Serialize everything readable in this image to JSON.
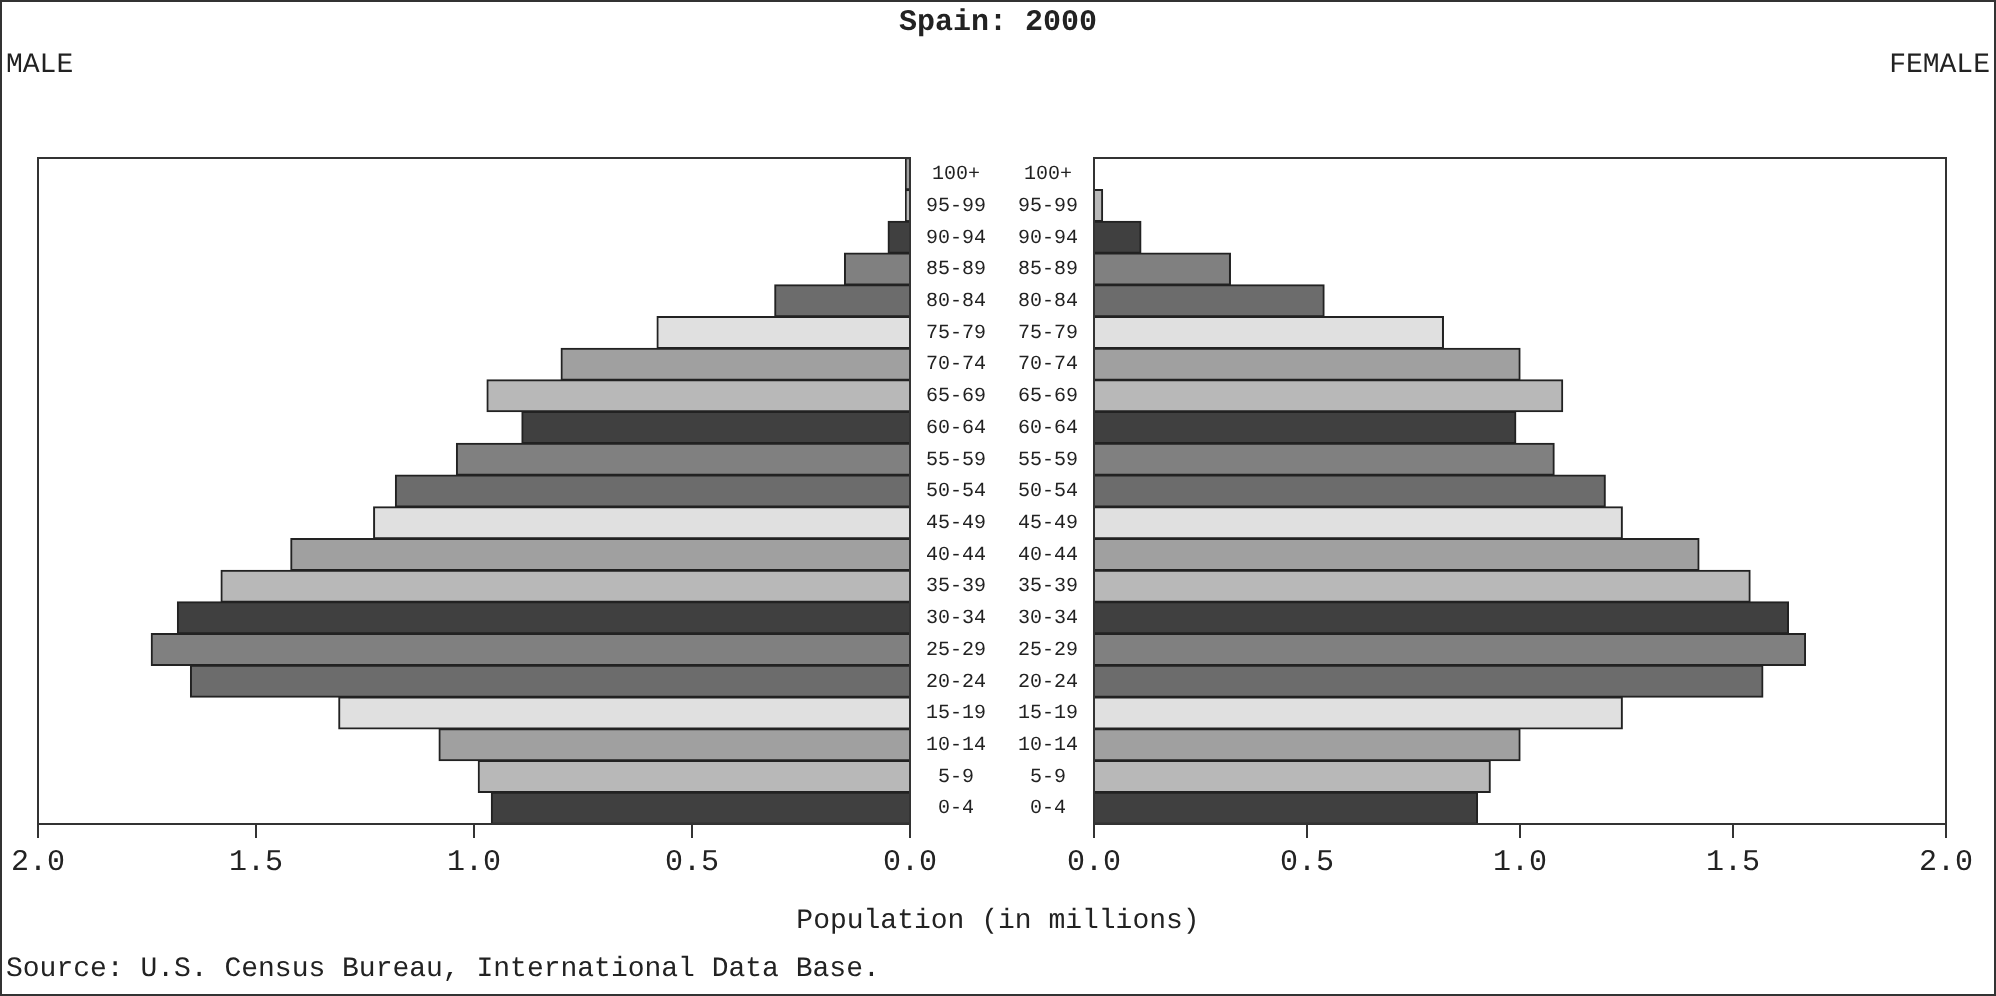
{
  "chart_data": [
    {
      "type": "bar",
      "orientation": "horizontal",
      "title": "Spain: 2000",
      "subtitle": "MALE",
      "xlabel": "Population (in millions)",
      "annotations": [
        "Source: U.S. Census Bureau, International Data Base."
      ],
      "categories": [
        "100+",
        "95-99",
        "90-94",
        "85-89",
        "80-84",
        "75-79",
        "70-74",
        "65-69",
        "60-64",
        "55-59",
        "50-54",
        "45-49",
        "40-44",
        "35-39",
        "30-34",
        "25-29",
        "20-24",
        "15-19",
        "10-14",
        "5-9",
        "0-4"
      ],
      "values": [
        0.01,
        0.01,
        0.05,
        0.15,
        0.31,
        0.58,
        0.8,
        0.97,
        0.89,
        1.04,
        1.18,
        1.23,
        1.42,
        1.58,
        1.68,
        1.74,
        1.65,
        1.31,
        1.08,
        0.99,
        0.96
      ],
      "colors": [
        "#a0a0a0",
        "#b8b8b8",
        "#404040",
        "#808080",
        "#6c6c6c",
        "#e0e0e0",
        "#a0a0a0",
        "#b8b8b8",
        "#404040",
        "#808080",
        "#6c6c6c",
        "#e0e0e0",
        "#a0a0a0",
        "#b8b8b8",
        "#404040",
        "#808080",
        "#6c6c6c",
        "#e0e0e0",
        "#a0a0a0",
        "#b8b8b8",
        "#404040"
      ],
      "xlim": [
        2,
        0
      ],
      "xticks": [
        {
          "value": 2,
          "label": "2.0"
        },
        {
          "value": 1.5,
          "label": "1.5"
        },
        {
          "value": 1,
          "label": "1.0"
        },
        {
          "value": 0.5,
          "label": "0.5"
        },
        {
          "value": 0,
          "label": "0.0"
        }
      ]
    },
    {
      "type": "bar",
      "orientation": "horizontal",
      "subtitle": "FEMALE",
      "categories": [
        "100+",
        "95-99",
        "90-94",
        "85-89",
        "80-84",
        "75-79",
        "70-74",
        "65-69",
        "60-64",
        "55-59",
        "50-54",
        "45-49",
        "40-44",
        "35-39",
        "30-34",
        "25-29",
        "20-24",
        "15-19",
        "10-14",
        "5-9",
        "0-4"
      ],
      "values": [
        0,
        0.02,
        0.11,
        0.32,
        0.54,
        0.82,
        1.0,
        1.1,
        0.99,
        1.08,
        1.2,
        1.24,
        1.42,
        1.54,
        1.63,
        1.67,
        1.57,
        1.24,
        1.0,
        0.93,
        0.9
      ],
      "colors": [
        "#a0a0a0",
        "#b8b8b8",
        "#404040",
        "#808080",
        "#6c6c6c",
        "#e0e0e0",
        "#a0a0a0",
        "#b8b8b8",
        "#404040",
        "#808080",
        "#6c6c6c",
        "#e0e0e0",
        "#a0a0a0",
        "#b8b8b8",
        "#404040",
        "#808080",
        "#6c6c6c",
        "#e0e0e0",
        "#a0a0a0",
        "#b8b8b8",
        "#404040"
      ],
      "xlim": [
        0,
        2
      ],
      "xticks": [
        {
          "value": 0,
          "label": "0.0"
        },
        {
          "value": 0.5,
          "label": "0.5"
        },
        {
          "value": 1,
          "label": "1.0"
        },
        {
          "value": 1.5,
          "label": "1.5"
        },
        {
          "value": 2,
          "label": "2.0"
        }
      ]
    }
  ]
}
